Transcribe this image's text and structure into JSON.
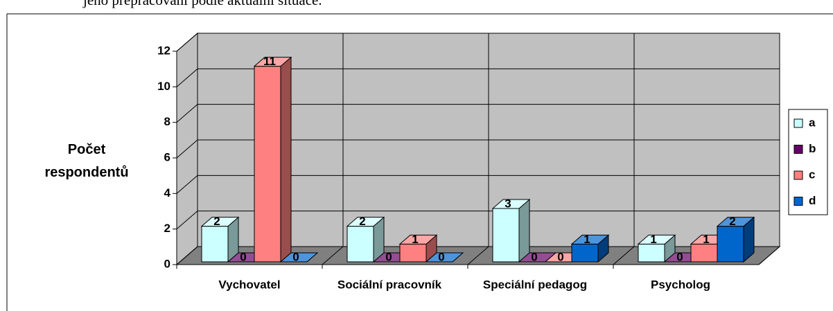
{
  "header_text": "jeho přepracování podle aktuální situace.",
  "chart_data": {
    "type": "bar3d",
    "ylabel": "Počet respondentů",
    "categories": [
      "Vychovatel",
      "Sociální pracovník",
      "Speciální pedagog",
      "Psycholog"
    ],
    "series": [
      {
        "name": "a",
        "color": "#ccffff",
        "values": [
          2,
          2,
          3,
          1
        ]
      },
      {
        "name": "b",
        "color": "#660066",
        "values": [
          0,
          0,
          0,
          0
        ]
      },
      {
        "name": "c",
        "color": "#ff8080",
        "values": [
          11,
          1,
          0,
          1
        ]
      },
      {
        "name": "d",
        "color": "#0066cc",
        "values": [
          0,
          0,
          1,
          2
        ]
      }
    ],
    "ylim": [
      0,
      12
    ],
    "yticks": [
      0,
      2,
      4,
      6,
      8,
      10,
      12
    ],
    "grid": true,
    "legend": "right"
  }
}
